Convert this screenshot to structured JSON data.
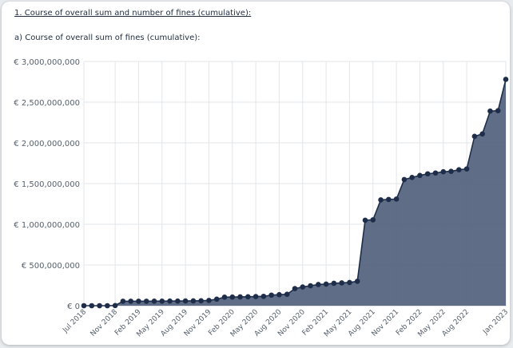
{
  "header": {
    "section_title": "1. Course of overall sum and number of fines (cumulative):",
    "chart_title": "a) Course of overall sum of fines (cumulative):"
  },
  "chart_data": {
    "type": "area",
    "title": "",
    "xlabel": "",
    "ylabel": "",
    "y_unit": "€",
    "ylim": [
      0,
      3000000000
    ],
    "y_ticks": [
      0,
      500000000,
      1000000000,
      1500000000,
      2000000000,
      2500000000,
      3000000000
    ],
    "y_tick_labels": [
      "€ 0",
      "€ 500,000,000",
      "€ 1,000,000,000",
      "€ 1,500,000,000",
      "€ 2,000,000,000",
      "€ 2,500,000,000",
      "€ 3,000,000,000"
    ],
    "x_tick_labels": [
      "Jul 2018",
      "Nov 2018",
      "Feb 2019",
      "May 2019",
      "Aug 2019",
      "Nov 2019",
      "Feb 2020",
      "May 2020",
      "Aug 2020",
      "Nov 2020",
      "Feb 2021",
      "May 2021",
      "Aug 2021",
      "Nov 2021",
      "Feb 2022",
      "May 2022",
      "Aug 2022",
      "Jan 2023"
    ],
    "grid": true,
    "fill_color": "#56657f",
    "line_color": "#1e2d4a",
    "series": [
      {
        "x": [
          "2018-07",
          "2018-08",
          "2018-09",
          "2018-10",
          "2018-11",
          "2018-12",
          "2019-01",
          "2019-02",
          "2019-03",
          "2019-04",
          "2019-05",
          "2019-06",
          "2019-07",
          "2019-08",
          "2019-09",
          "2019-10",
          "2019-11",
          "2019-12",
          "2020-01",
          "2020-02",
          "2020-03",
          "2020-04",
          "2020-05",
          "2020-06",
          "2020-07",
          "2020-08",
          "2020-09",
          "2020-10",
          "2020-11",
          "2020-12",
          "2021-01",
          "2021-02",
          "2021-03",
          "2021-04",
          "2021-05",
          "2021-06",
          "2021-07",
          "2021-08",
          "2021-09",
          "2021-10",
          "2021-11",
          "2021-12",
          "2022-01",
          "2022-02",
          "2022-03",
          "2022-04",
          "2022-05",
          "2022-06",
          "2022-07",
          "2022-08",
          "2022-09",
          "2022-10",
          "2022-11",
          "2022-12",
          "2023-01"
        ],
        "values": [
          0,
          0,
          0,
          0,
          2000000,
          55000000,
          55000000,
          55000000,
          55000000,
          56000000,
          56000000,
          57000000,
          57000000,
          58000000,
          59000000,
          61000000,
          65000000,
          80000000,
          105000000,
          106000000,
          108000000,
          110000000,
          112000000,
          115000000,
          130000000,
          135000000,
          140000000,
          210000000,
          230000000,
          245000000,
          260000000,
          265000000,
          275000000,
          280000000,
          285000000,
          300000000,
          1050000000,
          1055000000,
          1300000000,
          1305000000,
          1310000000,
          1550000000,
          1575000000,
          1600000000,
          1620000000,
          1630000000,
          1645000000,
          1650000000,
          1670000000,
          1680000000,
          2080000000,
          2110000000,
          2390000000,
          2395000000,
          2780000000
        ]
      }
    ]
  }
}
